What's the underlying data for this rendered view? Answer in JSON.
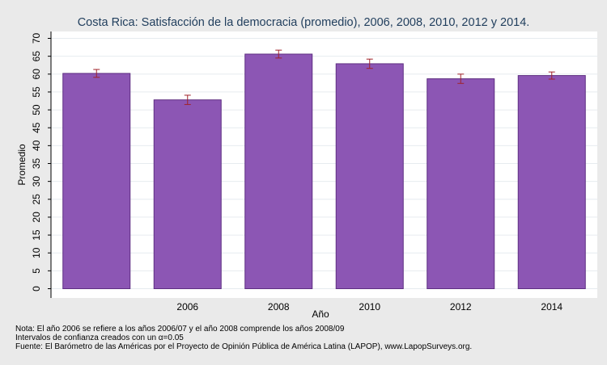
{
  "chart_data": {
    "type": "bar",
    "title": "Costa Rica: Satisfacción de la democracia (promedio), 2006, 2008, 2010, 2012 y 2014.",
    "xlabel": "Año",
    "ylabel": "Promedio",
    "ylim": [
      0,
      70
    ],
    "yticks": [
      "0",
      "5",
      "10",
      "15",
      "20",
      "25",
      "30",
      "35",
      "40",
      "45",
      "50",
      "55",
      "60",
      "65",
      "70"
    ],
    "categories": [
      "",
      "2006",
      "2008",
      "2010",
      "2012",
      "2014"
    ],
    "values": [
      60.2,
      52.8,
      65.6,
      62.9,
      58.7,
      59.6
    ],
    "error_low": [
      59.1,
      51.5,
      64.5,
      61.6,
      57.4,
      58.6
    ],
    "error_high": [
      61.3,
      54.1,
      66.7,
      64.2,
      60.0,
      60.6
    ],
    "bar_color": "#8c56b4",
    "bar_edge_color": "#5f2f82",
    "error_color": "#a0222a",
    "grid": true,
    "legend": "none"
  },
  "notes": {
    "line1": "Nota: El año 2006 se refiere a los años 2006/07 y el año 2008 comprende los años 2008/09",
    "line2": "Intervalos de confianza creados con un α=0.05",
    "line3": "Fuente: El Barómetro de las Américas por el Proyecto de Opinión Pública de América Latina (LAPOP), www.LapopSurveys.org."
  }
}
